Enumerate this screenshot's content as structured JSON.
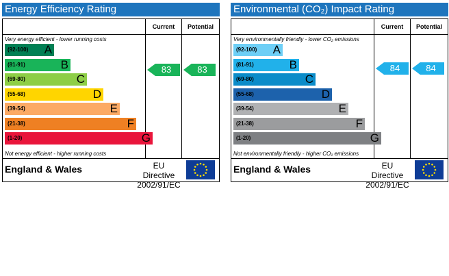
{
  "energy": {
    "title": "Energy Efficiency Rating",
    "headers": {
      "current": "Current",
      "potential": "Potential"
    },
    "top_note": "Very energy efficient - lower running costs",
    "bottom_note": "Not energy efficient - higher running costs",
    "bands": [
      {
        "range": "(92-100)",
        "letter": "A",
        "color": "#008054"
      },
      {
        "range": "(81-91)",
        "letter": "B",
        "color": "#19b459"
      },
      {
        "range": "(69-80)",
        "letter": "C",
        "color": "#8dce46"
      },
      {
        "range": "(55-68)",
        "letter": "D",
        "color": "#ffd500"
      },
      {
        "range": "(39-54)",
        "letter": "E",
        "color": "#fcaa65"
      },
      {
        "range": "(21-38)",
        "letter": "F",
        "color": "#ef8023"
      },
      {
        "range": "(1-20)",
        "letter": "G",
        "color": "#e9153b"
      }
    ],
    "current": "83",
    "potential": "83",
    "arrow_color": "#19b459",
    "region": "England & Wales",
    "directive_line1": "EU Directive",
    "directive_line2": "2002/91/EC"
  },
  "environment": {
    "title": "Environmental (CO₂) Impact Rating",
    "headers": {
      "current": "Current",
      "potential": "Potential"
    },
    "top_note": "Very environmentally friendly - lower CO₂ emissions",
    "bottom_note": "Not environmentally friendly - higher CO₂ emissions",
    "bands": [
      {
        "range": "(92-100)",
        "letter": "A",
        "color": "#6ecff6"
      },
      {
        "range": "(81-91)",
        "letter": "B",
        "color": "#21b1ea"
      },
      {
        "range": "(69-80)",
        "letter": "C",
        "color": "#0b8cc9"
      },
      {
        "range": "(55-68)",
        "letter": "D",
        "color": "#1d62ac"
      },
      {
        "range": "(39-54)",
        "letter": "E",
        "color": "#b0b1b3"
      },
      {
        "range": "(21-38)",
        "letter": "F",
        "color": "#9b9c9e"
      },
      {
        "range": "(1-20)",
        "letter": "G",
        "color": "#7e8083"
      }
    ],
    "current": "84",
    "potential": "84",
    "arrow_color": "#21b1ea",
    "region": "England & Wales",
    "directive_line1": "EU Directive",
    "directive_line2": "2002/91/EC"
  }
}
